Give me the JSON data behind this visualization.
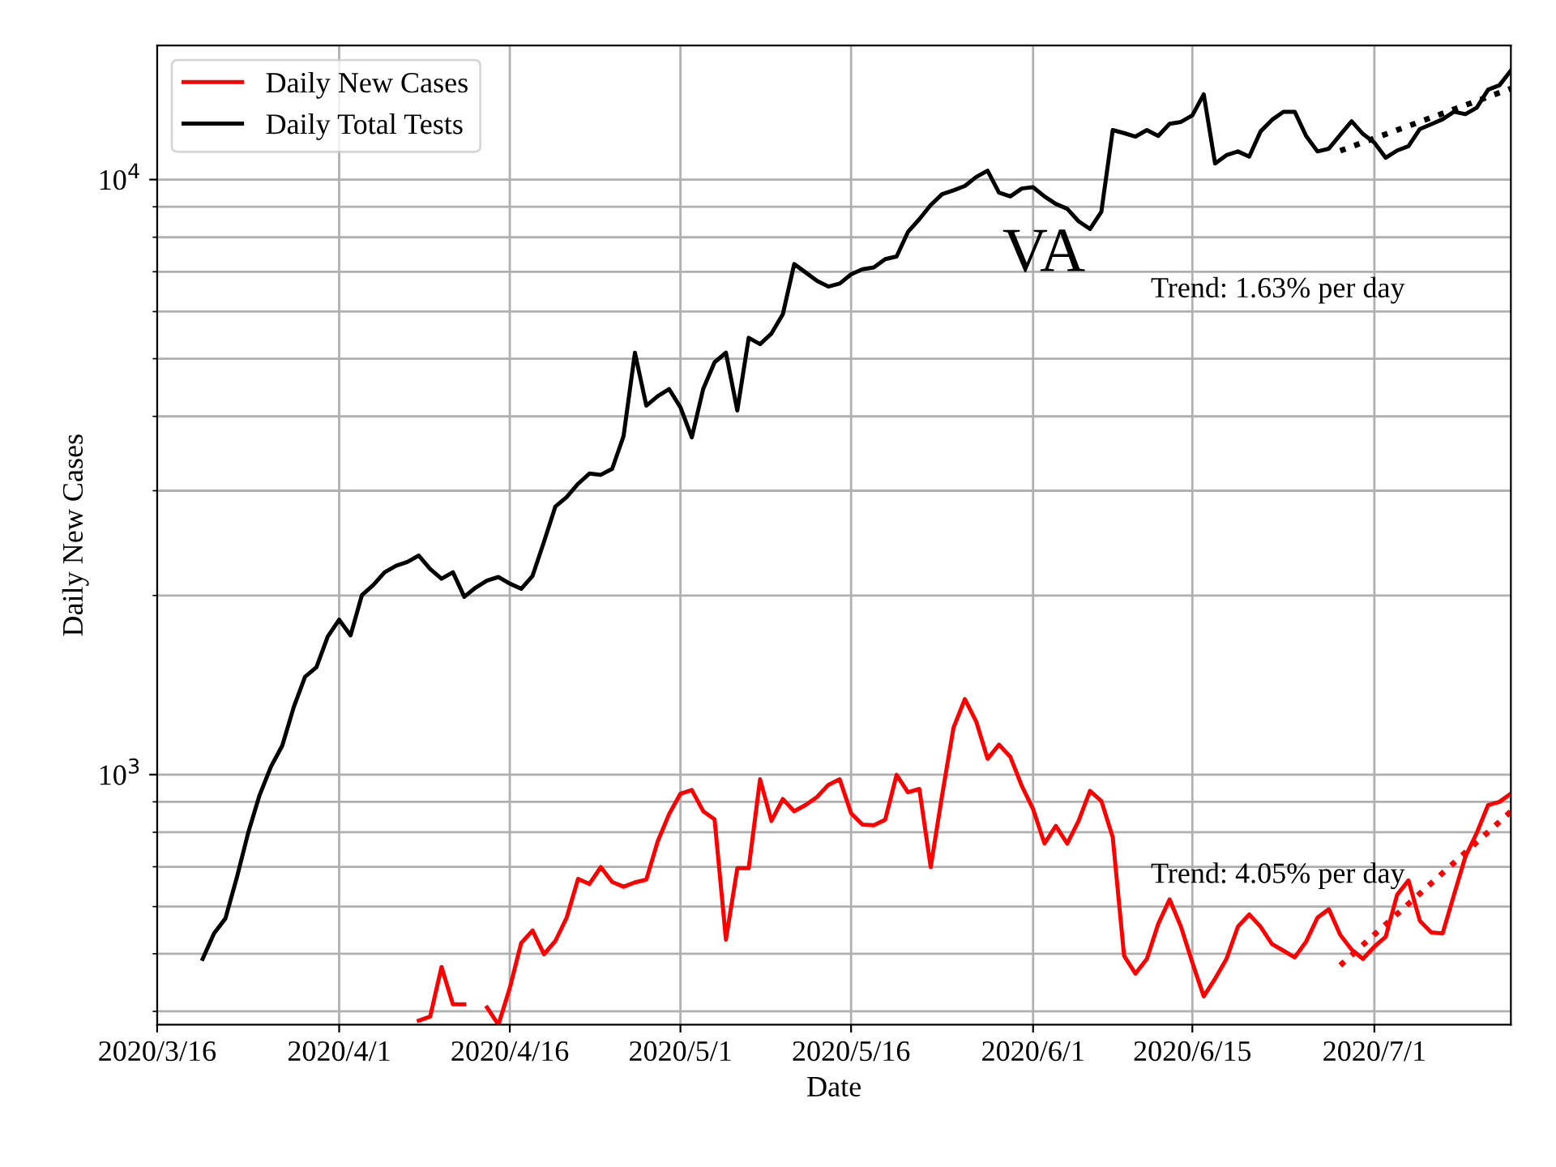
{
  "chart_data": {
    "type": "line",
    "xlabel": "Date",
    "ylabel": "Daily New Cases",
    "log": "y",
    "grid": true,
    "legend": "top left",
    "xlim": [
      "2020-03-16",
      "2020-07-13"
    ],
    "ylim": [
      380,
      16800
    ],
    "xticks": [
      {
        "value": "2020-03-16",
        "label": "2020/3/16"
      },
      {
        "value": "2020-04-01",
        "label": "2020/4/1"
      },
      {
        "value": "2020-04-16",
        "label": "2020/4/16"
      },
      {
        "value": "2020-05-01",
        "label": "2020/5/1"
      },
      {
        "value": "2020-05-16",
        "label": "2020/5/16"
      },
      {
        "value": "2020-06-01",
        "label": "2020/6/1"
      },
      {
        "value": "2020-06-15",
        "label": "2020/6/15"
      },
      {
        "value": "2020-07-01",
        "label": "2020/7/1"
      }
    ],
    "yticks": [
      {
        "value": 1000,
        "label": "10$^{3}$"
      },
      {
        "value": 10000,
        "label": "10$^{4}$"
      }
    ],
    "annotations": [
      "VA",
      "Trend: 1.63% per day",
      "Trend: 4.05% per day"
    ],
    "x": [
      "2020-03-20",
      "2020-03-21",
      "2020-03-22",
      "2020-03-23",
      "2020-03-24",
      "2020-03-25",
      "2020-03-26",
      "2020-03-27",
      "2020-03-28",
      "2020-03-29",
      "2020-03-30",
      "2020-03-31",
      "2020-04-01",
      "2020-04-02",
      "2020-04-03",
      "2020-04-04",
      "2020-04-05",
      "2020-04-06",
      "2020-04-07",
      "2020-04-08",
      "2020-04-09",
      "2020-04-10",
      "2020-04-11",
      "2020-04-12",
      "2020-04-13",
      "2020-04-14",
      "2020-04-15",
      "2020-04-16",
      "2020-04-17",
      "2020-04-18",
      "2020-04-19",
      "2020-04-20",
      "2020-04-21",
      "2020-04-22",
      "2020-04-23",
      "2020-04-24",
      "2020-04-25",
      "2020-04-26",
      "2020-04-27",
      "2020-04-28",
      "2020-04-29",
      "2020-04-30",
      "2020-05-01",
      "2020-05-02",
      "2020-05-03",
      "2020-05-04",
      "2020-05-05",
      "2020-05-06",
      "2020-05-07",
      "2020-05-08",
      "2020-05-09",
      "2020-05-10",
      "2020-05-11",
      "2020-05-12",
      "2020-05-13",
      "2020-05-14",
      "2020-05-15",
      "2020-05-16",
      "2020-05-17",
      "2020-05-18",
      "2020-05-19",
      "2020-05-20",
      "2020-05-21",
      "2020-05-22",
      "2020-05-23",
      "2020-05-24",
      "2020-05-25",
      "2020-05-26",
      "2020-05-27",
      "2020-05-28",
      "2020-05-29",
      "2020-05-30",
      "2020-05-31",
      "2020-06-01",
      "2020-06-02",
      "2020-06-03",
      "2020-06-04",
      "2020-06-05",
      "2020-06-06",
      "2020-06-07",
      "2020-06-08",
      "2020-06-09",
      "2020-06-10",
      "2020-06-11",
      "2020-06-12",
      "2020-06-13",
      "2020-06-14",
      "2020-06-15",
      "2020-06-16",
      "2020-06-17",
      "2020-06-18",
      "2020-06-19",
      "2020-06-20",
      "2020-06-21",
      "2020-06-22",
      "2020-06-23",
      "2020-06-24",
      "2020-06-25",
      "2020-06-26",
      "2020-06-27",
      "2020-06-28",
      "2020-06-29",
      "2020-06-30",
      "2020-07-01",
      "2020-07-02",
      "2020-07-03",
      "2020-07-04",
      "2020-07-05",
      "2020-07-06",
      "2020-07-07",
      "2020-07-08",
      "2020-07-09",
      "2020-07-10",
      "2020-07-11",
      "2020-07-12",
      "2020-07-13"
    ],
    "series": [
      {
        "name": "Daily New Cases",
        "color": "#ff0000",
        "values": [
          null,
          null,
          null,
          null,
          null,
          null,
          null,
          null,
          null,
          null,
          null,
          null,
          null,
          null,
          null,
          null,
          null,
          null,
          null,
          386,
          392,
          475,
          411,
          411,
          null,
          406,
          380,
          438,
          521,
          547,
          499,
          525,
          575,
          668,
          655,
          699,
          660,
          648,
          659,
          666,
          772,
          858,
          929,
          942,
          868,
          841,
          528,
          696,
          696,
          982,
          836,
          910,
          868,
          889,
          917,
          961,
          982,
          861,
          824,
          822,
          840,
          999,
          934,
          946,
          699,
          923,
          1198,
          1339,
          1228,
          1063,
          1123,
          1071,
          958,
          875,
          766,
          820,
          766,
          836,
          939,
          903,
          785,
          496,
          463,
          490,
          561,
          617,
          555,
          483,
          424,
          454,
          490,
          555,
          582,
          555,
          519,
          506,
          493,
          524,
          575,
          594,
          538,
          508,
          490,
          514,
          534,
          628,
          664,
          568,
          543,
          541,
          628,
          728,
          798,
          889,
          900,
          929
        ]
      },
      {
        "name": "Daily Total Tests",
        "color": "#000000",
        "values": [
          490,
          541,
          573,
          671,
          798,
          923,
          1031,
          1119,
          1297,
          1460,
          1515,
          1706,
          1821,
          1714,
          2003,
          2082,
          2188,
          2244,
          2277,
          2334,
          2216,
          2134,
          2188,
          1990,
          2062,
          2119,
          2148,
          2094,
          2052,
          2158,
          2460,
          2820,
          2927,
          3081,
          3206,
          3190,
          3265,
          3706,
          5117,
          4169,
          4325,
          4446,
          4143,
          3689,
          4446,
          4932,
          5117,
          4093,
          5420,
          5290,
          5511,
          5937,
          7210,
          6982,
          6758,
          6610,
          6687,
          6930,
          7066,
          7117,
          7350,
          7425,
          8166,
          8578,
          9061,
          9450,
          9590,
          9755,
          10100,
          10350,
          9510,
          9370,
          9660,
          9710,
          9370,
          9100,
          8930,
          8510,
          8260,
          8830,
          12110,
          11970,
          11810,
          12110,
          11840,
          12410,
          12500,
          12820,
          13910,
          10640,
          10990,
          11150,
          10930,
          12050,
          12600,
          13000,
          13000,
          11840,
          11150,
          11270,
          11890,
          12530,
          11930,
          11540,
          10880,
          11190,
          11380,
          12160,
          12390,
          12630,
          13000,
          12880,
          13210,
          14160,
          14410,
          15250
        ]
      },
      {
        "color": "#000000",
        "line_style": "dotted",
        "x": [
          "2020-06-28",
          "2020-07-13"
        ],
        "values": [
          11180,
          14220
        ]
      },
      {
        "color": "#ff0000",
        "line_style": "dotted",
        "x": [
          "2020-06-28",
          "2020-07-13"
        ],
        "values": [
          478,
          867
        ]
      }
    ]
  }
}
